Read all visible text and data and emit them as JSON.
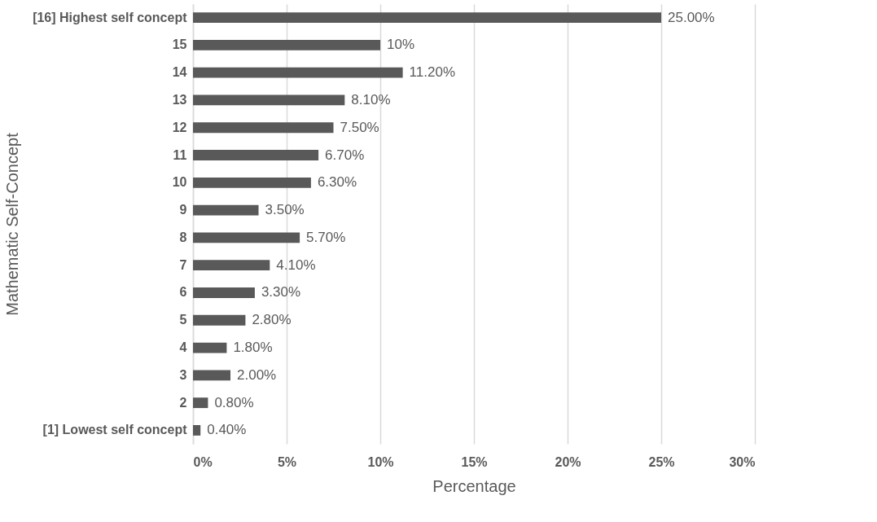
{
  "chart_data": {
    "type": "bar",
    "orientation": "horizontal",
    "xlabel": "Percentage",
    "ylabel": "Mathematic Self-Concept",
    "categories": [
      "[16] Highest self concept",
      "15",
      "14",
      "13",
      "12",
      "11",
      "10",
      "9",
      "8",
      "7",
      "6",
      "5",
      "4",
      "3",
      "2",
      "[1] Lowest self concept"
    ],
    "values": [
      25,
      10,
      11.2,
      8.1,
      7.5,
      6.7,
      6.3,
      3.5,
      5.7,
      4.1,
      3.3,
      2.8,
      1.8,
      2,
      0.8,
      0.4
    ],
    "value_labels": [
      "25.00%",
      "10%",
      "11.20%",
      "8.10%",
      "7.50%",
      "6.70%",
      "6.30%",
      "3.50%",
      "5.70%",
      "4.10%",
      "3.30%",
      "2.80%",
      "1.80%",
      "2.00%",
      "0.80%",
      "0.40%"
    ],
    "color": "#595959",
    "xlim": [
      0,
      30
    ],
    "xticks": [
      {
        "value": 0,
        "label": "0%"
      },
      {
        "value": 5,
        "label": "5%"
      },
      {
        "value": 10,
        "label": "10%"
      },
      {
        "value": 15,
        "label": "15%"
      },
      {
        "value": 20,
        "label": "20%"
      },
      {
        "value": 25,
        "label": "25%"
      },
      {
        "value": 30,
        "label": "30%"
      }
    ],
    "grid": "x"
  }
}
